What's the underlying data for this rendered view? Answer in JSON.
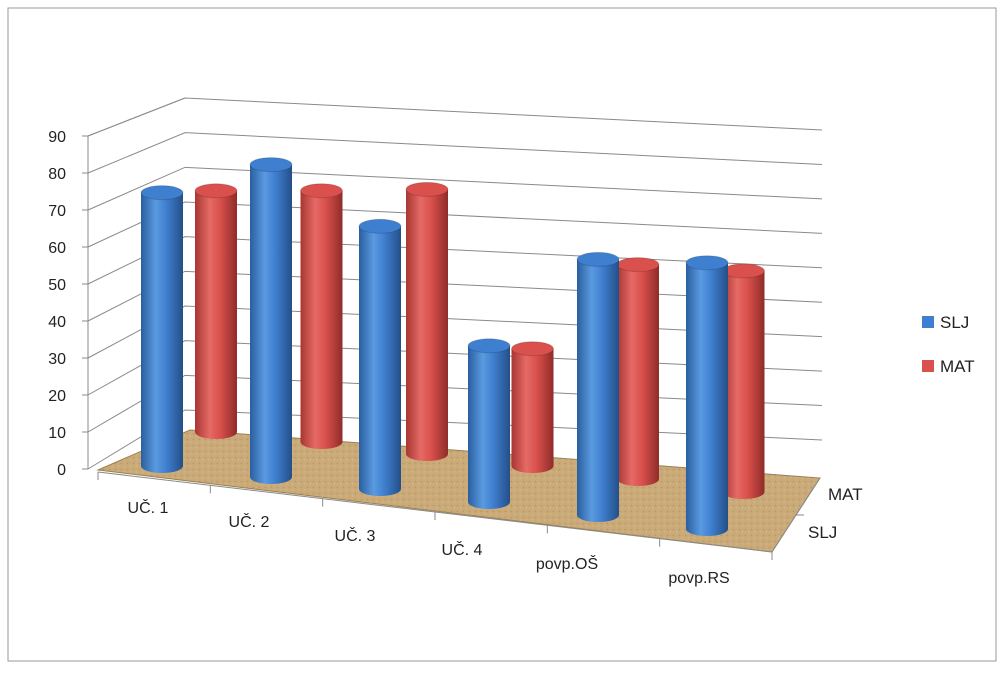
{
  "chart_data": {
    "type": "bar",
    "subtype": "3d-cylinder",
    "categories": [
      "UČ. 1",
      "UČ. 2",
      "UČ. 3",
      "UČ. 4",
      "povp.OŠ",
      "povp.RS"
    ],
    "series": [
      {
        "name": "SLJ",
        "values": [
          77,
          88,
          74,
          44,
          72,
          75
        ],
        "color": "#3f7fcf"
      },
      {
        "name": "MAT",
        "values": [
          72,
          75,
          79,
          35,
          64,
          66
        ],
        "color": "#d9504c"
      }
    ],
    "depth_labels": [
      "MAT",
      "SLJ"
    ],
    "y_ticks": [
      "0",
      "10",
      "20",
      "30",
      "40",
      "50",
      "60",
      "70",
      "80",
      "90"
    ],
    "ylim": [
      0,
      90
    ],
    "grid": true,
    "legend_position": "right",
    "floor_color": "#c9aa78"
  }
}
